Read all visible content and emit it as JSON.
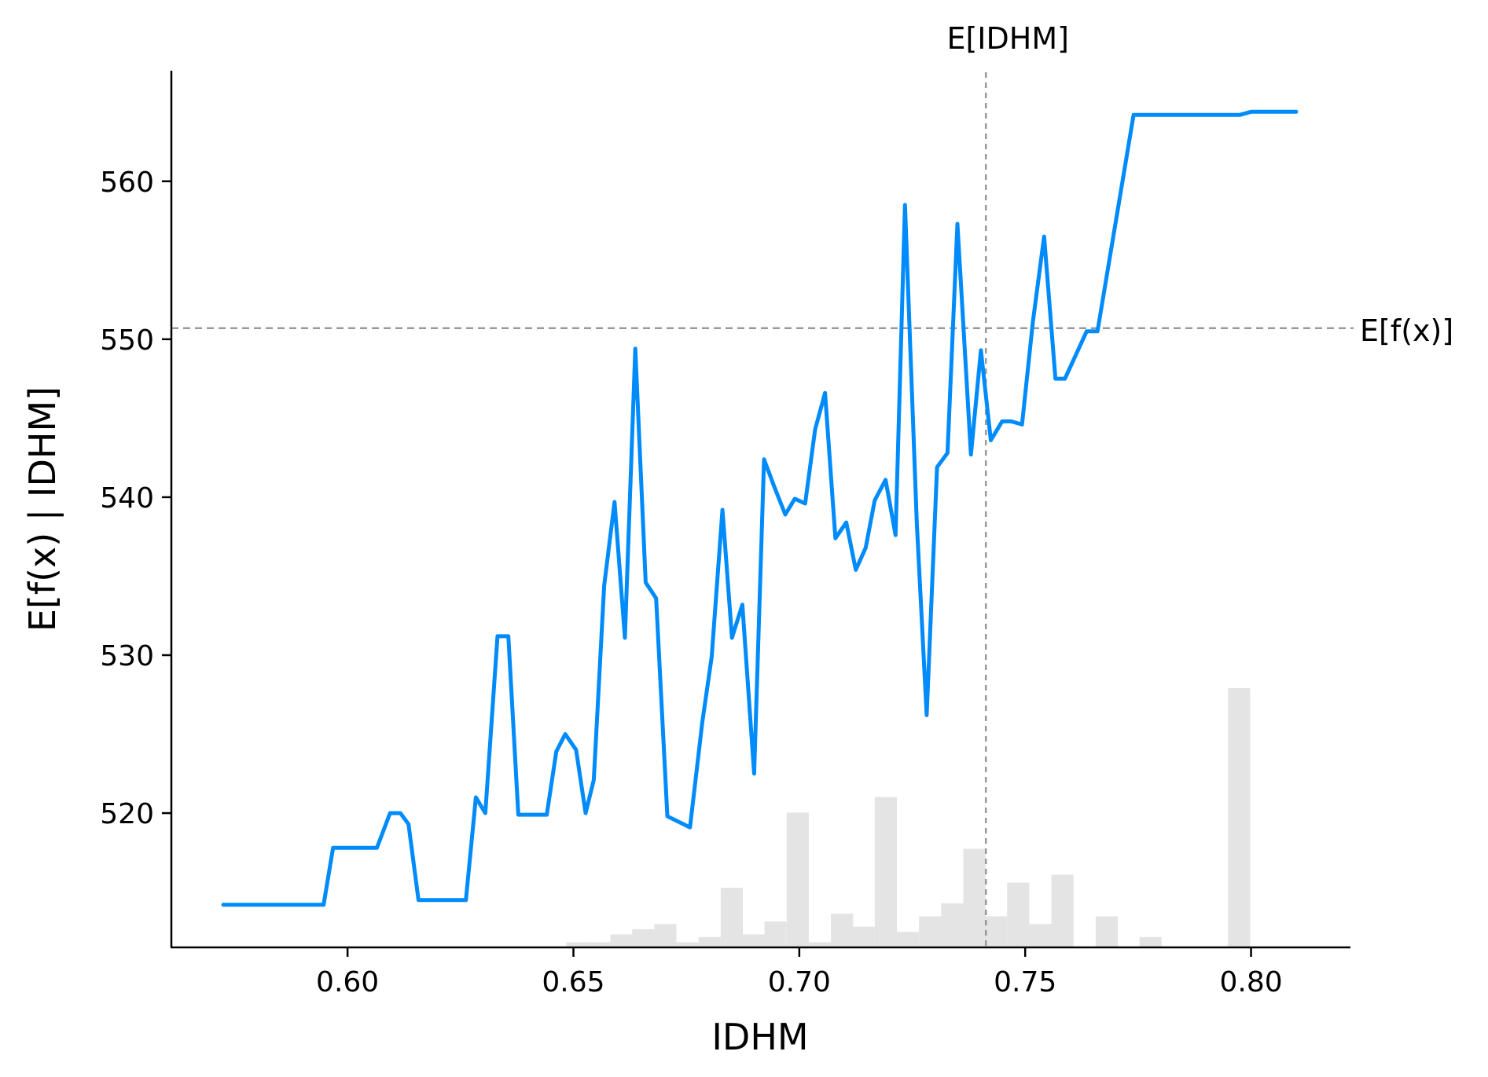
{
  "chart_data": {
    "type": "line",
    "xlabel": "IDHM",
    "ylabel": "E[f(x) | IDHM]",
    "xlim": [
      0.561,
      0.822
    ],
    "ylim": [
      511.5,
      567.0
    ],
    "xticks": [
      0.6,
      0.65,
      0.7,
      0.75,
      0.8
    ],
    "xtick_labels": [
      "0.60",
      "0.65",
      "0.70",
      "0.75",
      "0.80"
    ],
    "yticks": [
      520,
      530,
      540,
      550,
      560
    ],
    "ytick_labels": [
      "520",
      "530",
      "540",
      "550",
      "560"
    ],
    "grid": false,
    "line_color": "#008bfb",
    "reference_color": "#999999",
    "histogram_color": "#e4e4e4",
    "reference_lines": {
      "vertical": {
        "label": "E[IDHM]",
        "x": 0.7413
      },
      "horizontal": {
        "label": "E[f(x)]",
        "y": 550.7
      }
    },
    "series": [
      {
        "x": [
          0.5725,
          0.5947,
          0.5968,
          0.6065,
          0.6094,
          0.6117,
          0.6135,
          0.6157,
          0.6178,
          0.6262,
          0.6284,
          0.6305,
          0.6332,
          0.6356,
          0.6378,
          0.6441,
          0.6462,
          0.6482,
          0.6506,
          0.6527,
          0.6545,
          0.6568,
          0.6591,
          0.6614,
          0.6637,
          0.666,
          0.6683,
          0.6708,
          0.6758,
          0.6785,
          0.6806,
          0.683,
          0.6851,
          0.6874,
          0.69,
          0.6922,
          0.6944,
          0.6969,
          0.699,
          0.7013,
          0.7035,
          0.7057,
          0.708,
          0.7104,
          0.7125,
          0.7147,
          0.7167,
          0.7191,
          0.7213,
          0.7234,
          0.726,
          0.7282,
          0.7305,
          0.7328,
          0.735,
          0.738,
          0.7402,
          0.7424,
          0.7449,
          0.7469,
          0.7493,
          0.7517,
          0.7542,
          0.7567,
          0.7588,
          0.7636,
          0.766,
          0.774,
          0.7765,
          0.7975,
          0.8,
          0.81
        ],
        "values": [
          514.2,
          514.2,
          517.8,
          517.8,
          520.0,
          520.0,
          519.3,
          514.5,
          514.5,
          514.5,
          521.0,
          520.0,
          531.2,
          531.2,
          519.9,
          519.9,
          523.9,
          525.0,
          524.0,
          520.0,
          522.1,
          534.4,
          539.7,
          531.1,
          549.4,
          534.6,
          533.6,
          519.8,
          519.1,
          525.7,
          529.9,
          539.2,
          531.1,
          533.2,
          522.5,
          542.4,
          540.7,
          538.9,
          539.9,
          539.6,
          544.3,
          546.6,
          537.4,
          538.4,
          535.4,
          536.8,
          539.8,
          541.1,
          537.6,
          558.5,
          538.4,
          526.2,
          541.9,
          542.8,
          557.3,
          542.7,
          549.3,
          543.6,
          544.8,
          544.8,
          544.6,
          551.1,
          556.5,
          547.5,
          547.5,
          550.5,
          550.5,
          564.2,
          564.2,
          564.2,
          564.4,
          564.4
        ]
      }
    ],
    "histogram": {
      "bin_starts": [
        0.6484,
        0.6533,
        0.6582,
        0.663,
        0.6679,
        0.6728,
        0.6777,
        0.6826,
        0.6875,
        0.6923,
        0.6972,
        0.7021,
        0.707,
        0.7118,
        0.7167,
        0.7216,
        0.7265,
        0.7314,
        0.7363,
        0.7411,
        0.746,
        0.7509,
        0.7558,
        0.7607,
        0.7656,
        0.7704,
        0.7753,
        0.7802,
        0.7851,
        0.79,
        0.7949,
        0.7997
      ],
      "heights": [
        0.02,
        0.02,
        0.05,
        0.07,
        0.09,
        0.02,
        0.04,
        0.23,
        0.05,
        0.1,
        0.52,
        0.02,
        0.13,
        0.08,
        0.58,
        0.06,
        0.12,
        0.17,
        0.38,
        0.12,
        0.25,
        0.09,
        0.28,
        0.0,
        0.12,
        0.0,
        0.04,
        0.0,
        0.0,
        0.0,
        1.0,
        0.0
      ]
    }
  }
}
